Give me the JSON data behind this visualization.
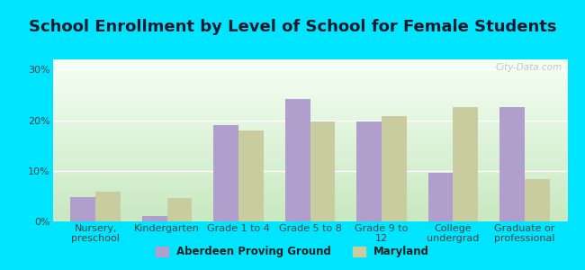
{
  "title": "School Enrollment by Level of School for Female Students",
  "categories": [
    "Nursery,\npreschool",
    "Kindergarten",
    "Grade 1 to 4",
    "Grade 5 to 8",
    "Grade 9 to\n12",
    "College\nundergrad",
    "Graduate or\nprofessional"
  ],
  "aberdeen_values": [
    4.8,
    1.0,
    19.0,
    24.2,
    19.8,
    9.6,
    22.6
  ],
  "maryland_values": [
    5.8,
    4.6,
    18.0,
    19.8,
    20.8,
    22.6,
    8.4
  ],
  "aberdeen_color": "#b09fcc",
  "maryland_color": "#c8cc9f",
  "background_outer": "#00e5ff",
  "gradient_bottom": "#c8e8c0",
  "gradient_top": "#f5fff5",
  "ylabel_ticks": [
    "0%",
    "10%",
    "20%",
    "30%"
  ],
  "ytick_values": [
    0,
    10,
    20,
    30
  ],
  "ylim": [
    0,
    32
  ],
  "legend_labels": [
    "Aberdeen Proving Ground",
    "Maryland"
  ],
  "bar_width": 0.35,
  "title_fontsize": 13,
  "tick_fontsize": 8,
  "watermark": "City-Data.com"
}
